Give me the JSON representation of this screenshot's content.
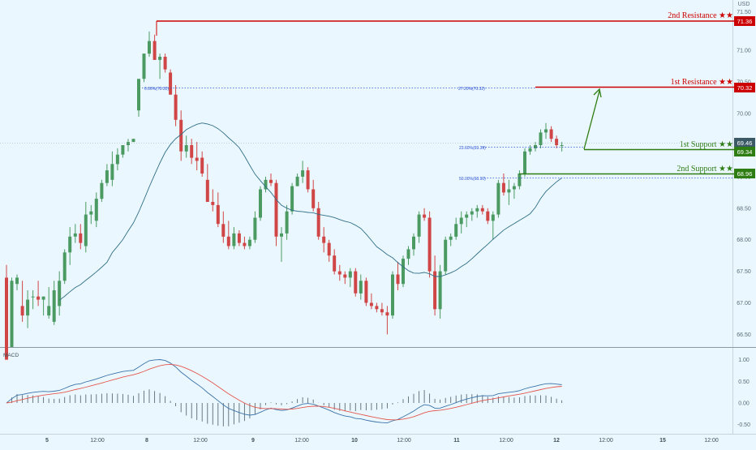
{
  "currency": "USD",
  "main_price_axis": {
    "ticks": [
      "71.00",
      "70.50",
      "70.00",
      "69.50",
      "69.00",
      "68.50",
      "68.00",
      "67.50",
      "67.00",
      "66.50"
    ],
    "top_tick": "71.50"
  },
  "macd": {
    "title": "MACD",
    "ticks": [
      "1.00",
      "0.50",
      "0.00",
      "-0.50"
    ]
  },
  "time_axis": [
    "5",
    "12:00",
    "8",
    "12:00",
    "9",
    "12:00",
    "10",
    "12:00",
    "11",
    "12:00",
    "12",
    "12:00",
    "15",
    "12:00"
  ],
  "levels": {
    "r2": {
      "label": "2nd Resistance ★★",
      "value": "71.36",
      "color": "#cc0000"
    },
    "r1": {
      "label": "1st Resistance ★★",
      "value": "70.32",
      "color": "#cc0000"
    },
    "s1": {
      "label": "1st Support ★★",
      "value": "69.34",
      "color": "#2e7d12"
    },
    "s2": {
      "label": "2nd Support ★★",
      "value": "68.96",
      "color": "#2e7d12"
    }
  },
  "last_price": "69.46",
  "fib": {
    "f27": "27.20%(70.32)",
    "f23": "23.60%(69.39)",
    "f50": "50.00%(68.90)",
    "f0": "0.00%(70.32)"
  },
  "colors": {
    "up": "#4a9a62",
    "down": "#d04646",
    "ma": "#2f6f86",
    "macd_line": "#3a73a8",
    "signal_line": "#e4574f",
    "background": "#ebf7fe"
  },
  "chart_data": [
    {
      "type": "candlestick",
      "title": "",
      "y_unit": "USD",
      "ylim": [
        66.3,
        71.62
      ],
      "x_labels": [
        "5",
        "8",
        "9",
        "10",
        "11",
        "12",
        "15"
      ],
      "candles": [
        [
          67.4,
          67.6,
          66.1,
          66.1
        ],
        [
          66.3,
          67.4,
          66.3,
          67.35
        ],
        [
          67.3,
          67.45,
          67.2,
          67.4
        ],
        [
          66.95,
          67.35,
          66.7,
          66.8
        ],
        [
          66.8,
          67.2,
          66.6,
          67.05
        ],
        [
          67.1,
          67.2,
          66.9,
          67.1
        ],
        [
          67.1,
          67.35,
          66.95,
          67.05
        ],
        [
          67.05,
          67.1,
          66.8,
          67.1
        ],
        [
          66.8,
          67.25,
          66.75,
          66.95
        ],
        [
          66.7,
          67.35,
          66.65,
          67.2
        ],
        [
          66.95,
          67.5,
          66.8,
          67.35
        ],
        [
          67.35,
          67.85,
          67.3,
          67.8
        ],
        [
          67.8,
          68.2,
          67.6,
          68.05
        ],
        [
          68.05,
          68.25,
          67.95,
          68.1
        ],
        [
          68.1,
          68.25,
          67.85,
          67.95
        ],
        [
          67.9,
          68.6,
          67.8,
          68.4
        ],
        [
          68.4,
          68.55,
          68.25,
          68.45
        ],
        [
          68.3,
          68.75,
          68.2,
          68.65
        ],
        [
          68.65,
          68.95,
          68.6,
          68.9
        ],
        [
          68.9,
          69.2,
          68.85,
          69.1
        ],
        [
          68.95,
          69.4,
          68.85,
          69.2
        ],
        [
          69.2,
          69.45,
          69.1,
          69.35
        ],
        [
          69.35,
          69.5,
          69.3,
          69.5
        ],
        [
          69.5,
          69.6,
          69.4,
          69.55
        ],
        [
          69.55,
          69.6,
          69.55,
          69.6
        ],
        [
          70.05,
          70.55,
          69.95,
          70.55
        ],
        [
          70.55,
          70.95,
          70.5,
          70.95
        ],
        [
          70.95,
          71.3,
          70.9,
          71.15
        ],
        [
          71.15,
          71.25,
          70.85,
          70.85
        ],
        [
          70.85,
          70.95,
          70.55,
          70.9
        ],
        [
          70.9,
          70.95,
          70.65,
          70.7
        ],
        [
          70.65,
          70.7,
          70.3,
          70.3
        ],
        [
          70.3,
          70.45,
          69.8,
          69.9
        ],
        [
          69.9,
          70.05,
          69.25,
          69.4
        ],
        [
          69.4,
          69.65,
          69.3,
          69.5
        ],
        [
          69.5,
          69.6,
          69.2,
          69.3
        ],
        [
          69.3,
          69.55,
          69.1,
          69.25
        ],
        [
          69.3,
          69.4,
          69.0,
          69.05
        ],
        [
          68.95,
          69.2,
          68.6,
          68.6
        ],
        [
          68.6,
          68.8,
          68.45,
          68.55
        ],
        [
          68.55,
          68.75,
          68.2,
          68.25
        ],
        [
          68.25,
          68.45,
          67.95,
          68.05
        ],
        [
          68.05,
          68.3,
          67.85,
          67.9
        ],
        [
          67.9,
          68.2,
          67.85,
          68.1
        ],
        [
          68.1,
          68.15,
          67.9,
          67.95
        ],
        [
          67.95,
          68.05,
          67.85,
          67.9
        ],
        [
          67.9,
          68.05,
          67.85,
          68.0
        ],
        [
          68.0,
          68.45,
          67.95,
          68.35
        ],
        [
          68.35,
          68.85,
          68.3,
          68.8
        ],
        [
          68.8,
          69.0,
          68.75,
          68.95
        ],
        [
          68.95,
          69.05,
          68.85,
          68.9
        ],
        [
          68.9,
          68.95,
          67.9,
          68.05
        ],
        [
          68.05,
          68.2,
          67.65,
          68.1
        ],
        [
          68.1,
          68.55,
          68.0,
          68.45
        ],
        [
          68.45,
          68.9,
          68.4,
          68.85
        ],
        [
          68.85,
          69.05,
          68.85,
          69.0
        ],
        [
          69.0,
          69.25,
          68.9,
          69.1
        ],
        [
          69.1,
          69.15,
          68.75,
          68.8
        ],
        [
          68.8,
          68.95,
          68.45,
          68.5
        ],
        [
          68.5,
          68.6,
          68.0,
          68.05
        ],
        [
          68.05,
          68.2,
          67.8,
          67.95
        ],
        [
          67.95,
          68.0,
          67.65,
          67.75
        ],
        [
          67.75,
          67.85,
          67.45,
          67.5
        ],
        [
          67.5,
          67.6,
          67.35,
          67.45
        ],
        [
          67.45,
          67.5,
          67.3,
          67.4
        ],
        [
          67.4,
          67.55,
          67.25,
          67.5
        ],
        [
          67.5,
          67.55,
          67.1,
          67.15
        ],
        [
          67.15,
          67.45,
          67.05,
          67.35
        ],
        [
          67.35,
          67.4,
          66.95,
          67.0
        ],
        [
          67.0,
          67.15,
          66.9,
          66.95
        ],
        [
          66.95,
          67.0,
          66.85,
          66.9
        ],
        [
          66.9,
          67.0,
          66.8,
          66.85
        ],
        [
          66.85,
          66.95,
          66.5,
          66.8
        ],
        [
          66.8,
          67.5,
          66.75,
          67.45
        ],
        [
          67.45,
          67.65,
          67.2,
          67.3
        ],
        [
          67.3,
          67.75,
          67.25,
          67.7
        ],
        [
          67.7,
          67.9,
          67.6,
          67.85
        ],
        [
          67.85,
          68.1,
          67.75,
          68.05
        ],
        [
          68.05,
          68.45,
          67.95,
          68.4
        ],
        [
          68.4,
          68.5,
          68.3,
          68.35
        ],
        [
          68.35,
          68.45,
          67.4,
          67.5
        ],
        [
          67.5,
          67.75,
          66.8,
          66.9
        ],
        [
          66.9,
          67.6,
          66.75,
          67.5
        ],
        [
          67.5,
          68.05,
          67.45,
          68.0
        ],
        [
          68.0,
          68.1,
          67.9,
          68.05
        ],
        [
          68.05,
          68.35,
          68.0,
          68.25
        ],
        [
          68.25,
          68.45,
          68.1,
          68.35
        ],
        [
          68.35,
          68.45,
          68.2,
          68.4
        ],
        [
          68.4,
          68.5,
          68.3,
          68.45
        ],
        [
          68.45,
          68.55,
          68.35,
          68.5
        ],
        [
          68.5,
          68.55,
          68.4,
          68.45
        ],
        [
          68.45,
          68.5,
          68.25,
          68.3
        ],
        [
          68.3,
          68.45,
          68.0,
          68.4
        ],
        [
          68.4,
          68.95,
          68.35,
          68.9
        ],
        [
          68.9,
          69.05,
          68.7,
          68.75
        ],
        [
          68.75,
          68.95,
          68.55,
          68.8
        ],
        [
          68.8,
          68.9,
          68.65,
          68.85
        ],
        [
          68.85,
          69.1,
          68.8,
          69.05
        ],
        [
          69.05,
          69.45,
          69.0,
          69.4
        ],
        [
          69.4,
          69.5,
          69.35,
          69.45
        ],
        [
          69.45,
          69.55,
          69.4,
          69.5
        ],
        [
          69.5,
          69.75,
          69.45,
          69.7
        ],
        [
          69.7,
          69.85,
          69.6,
          69.75
        ],
        [
          69.75,
          69.8,
          69.55,
          69.6
        ],
        [
          69.6,
          69.65,
          69.45,
          69.5
        ],
        [
          69.5,
          69.55,
          69.4,
          69.5
        ]
      ]
    },
    {
      "type": "line",
      "title": "MACD",
      "ylim": [
        -0.62,
        1.22
      ],
      "x_labels": [
        "5",
        "8",
        "9",
        "10",
        "11",
        "12",
        "15"
      ]
    }
  ]
}
